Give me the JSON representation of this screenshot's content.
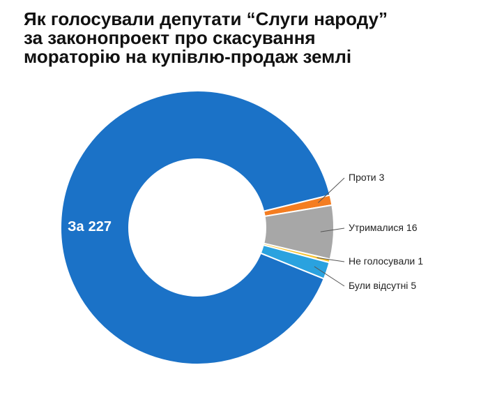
{
  "chart_data": {
    "type": "donut",
    "title": [
      "Як голосували депутати “Слуги народу”",
      "за законопроект про скасування",
      "мораторію на купівлю-продаж землі"
    ],
    "categories": [
      "За",
      "Проти",
      "Утрималися",
      "Не голосували",
      "Були відсутні"
    ],
    "values": [
      227,
      3,
      16,
      1,
      5
    ],
    "colors": [
      "#1b72c7",
      "#f47d21",
      "#a7a7a7",
      "#f6c12c",
      "#2aa2df"
    ]
  }
}
